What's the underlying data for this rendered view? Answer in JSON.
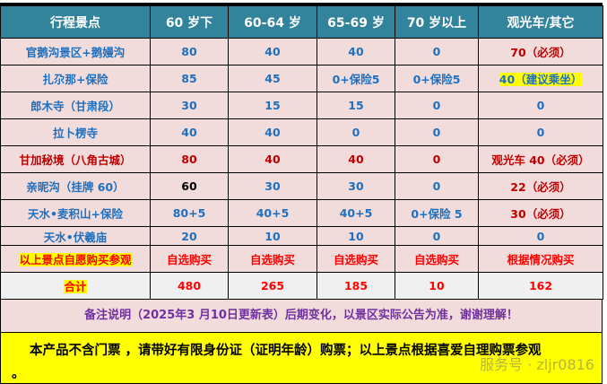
{
  "headers": [
    "行程景点",
    "60 岁下",
    "60-64 岁",
    "65-69 岁",
    "70 岁以上",
    "观光车/其它"
  ],
  "rows": [
    {
      "name": "官鹅沟景区+鹅嫚沟",
      "cells": [
        "80",
        "40",
        "40",
        "0",
        "70（必须）"
      ]
    },
    {
      "name": "扎尕那+保险",
      "cells": [
        "85",
        "45",
        "0+保险5",
        "0+保险5",
        "40（建议乘坐）"
      ]
    },
    {
      "name": "郎木寺（甘肃段）",
      "cells": [
        "30",
        "15",
        "15",
        "0",
        "0"
      ]
    },
    {
      "name": "拉卜楞寺",
      "cells": [
        "40",
        "40",
        "0",
        "0",
        "0"
      ]
    },
    {
      "name": "甘加秘境（八角古城）",
      "cells": [
        "80",
        "40",
        "40",
        "0",
        "观光车 40（必须）"
      ]
    },
    {
      "name": "亲昵沟（挂牌  60）",
      "cells": [
        "60",
        "30",
        "30",
        "0",
        "22（必须）"
      ]
    },
    {
      "name": "天水•麦积山+保险",
      "cells": [
        "80+5",
        "40+5",
        "40+5",
        "0+保险  5",
        "30（必须）"
      ]
    },
    {
      "name": "天水•伏羲庙",
      "cells": [
        "20",
        "10",
        "10",
        "0",
        "0"
      ]
    }
  ],
  "optional": {
    "name": "以上景点自愿购买参观",
    "cells": [
      "自选购买",
      "自选购买",
      "自选购买",
      "自选购买",
      "根据情况购买"
    ]
  },
  "total": {
    "name": "合计",
    "cells": [
      "480",
      "265",
      "185",
      "10",
      "162"
    ]
  },
  "note": "备注说明（2025年3 月10日更新表）后期变化，以景区实际公告为准，谢谢理解！",
  "notice": {
    "line1": "本产品不含门票 ，请带好有限身份证（证明年龄）购票；以上景点根据喜爱自理购票参观",
    "line2": "。"
  },
  "watermark": "服务号 · zljr0816",
  "colors": {
    "header": "#31849b",
    "cell": "#f2dcdb",
    "blue_text": "#1f6fbf",
    "red_text": "#c00000",
    "highlight": "#ffff00"
  }
}
